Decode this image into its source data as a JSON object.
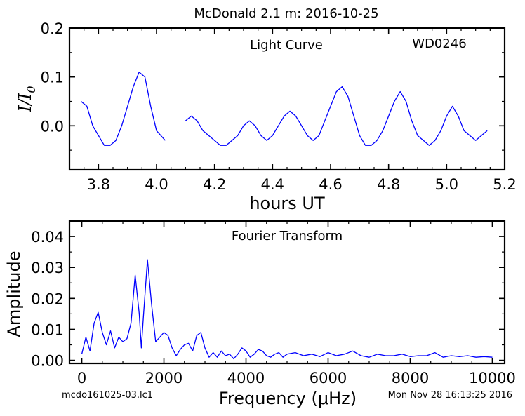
{
  "figure": {
    "title": "McDonald 2.1 m:  2016-10-25",
    "footer_left": "mcdo161025-03.lc1",
    "footer_right": "Mon Nov 28 16:13:25 2016"
  },
  "chart_data": [
    {
      "type": "line",
      "annotation_left": "Light Curve",
      "annotation_right": "WD0246",
      "xlabel": "hours UT",
      "ylabel": "I/I0",
      "xlim": [
        3.7,
        5.2
      ],
      "ylim": [
        -0.09,
        0.2
      ],
      "xticks": [
        3.8,
        4.0,
        4.2,
        4.4,
        4.6,
        4.8,
        5.0,
        5.2
      ],
      "xtick_labels": [
        "3.8",
        "4.0",
        "4.2",
        "4.4",
        "4.6",
        "4.8",
        "5.0",
        "5.2"
      ],
      "yticks": [
        0.0,
        0.1,
        0.2
      ],
      "ytick_labels": [
        "0.0",
        "0.1",
        "0.2"
      ],
      "grid": false,
      "line_color": "#0000ff",
      "segments": [
        {
          "x": [
            3.74,
            3.76,
            3.78,
            3.8,
            3.82,
            3.84,
            3.86,
            3.88,
            3.9,
            3.92,
            3.94,
            3.96,
            3.98,
            4.0,
            4.03
          ],
          "y": [
            0.05,
            0.04,
            0.0,
            -0.02,
            -0.04,
            -0.04,
            -0.03,
            0.0,
            0.04,
            0.08,
            0.11,
            0.1,
            0.04,
            -0.01,
            -0.03
          ]
        },
        {
          "x": [
            4.1,
            4.12,
            4.14,
            4.16,
            4.18,
            4.2,
            4.22,
            4.24,
            4.26,
            4.28,
            4.3,
            4.32,
            4.34,
            4.36,
            4.38,
            4.4,
            4.42,
            4.44,
            4.46,
            4.48,
            4.5,
            4.52,
            4.54,
            4.56,
            4.58,
            4.6,
            4.62,
            4.64,
            4.66,
            4.68,
            4.7,
            4.72,
            4.74,
            4.76,
            4.78,
            4.8,
            4.82,
            4.84,
            4.86,
            4.88,
            4.9,
            4.92,
            4.94,
            4.96,
            4.98,
            5.0,
            5.02,
            5.04,
            5.06,
            5.08,
            5.1,
            5.12,
            5.14
          ],
          "y": [
            0.01,
            0.02,
            0.01,
            -0.01,
            -0.02,
            -0.03,
            -0.04,
            -0.04,
            -0.03,
            -0.02,
            0.0,
            0.01,
            0.0,
            -0.02,
            -0.03,
            -0.02,
            0.0,
            0.02,
            0.03,
            0.02,
            0.0,
            -0.02,
            -0.03,
            -0.02,
            0.01,
            0.04,
            0.07,
            0.08,
            0.06,
            0.02,
            -0.02,
            -0.04,
            -0.04,
            -0.03,
            -0.01,
            0.02,
            0.05,
            0.07,
            0.05,
            0.01,
            -0.02,
            -0.03,
            -0.04,
            -0.03,
            -0.01,
            0.02,
            0.04,
            0.02,
            -0.01,
            -0.02,
            -0.03,
            -0.02,
            -0.01
          ]
        }
      ]
    },
    {
      "type": "line",
      "annotation": "Fourier Transform",
      "xlabel": "Frequency (μHz)",
      "ylabel": "Amplitude",
      "xlim": [
        -300,
        10300
      ],
      "ylim": [
        -0.001,
        0.045
      ],
      "xticks": [
        0,
        2000,
        4000,
        6000,
        8000,
        10000
      ],
      "xtick_labels": [
        "0",
        "2000",
        "4000",
        "6000",
        "8000",
        "10000"
      ],
      "yticks": [
        0.0,
        0.01,
        0.02,
        0.03,
        0.04
      ],
      "ytick_labels": [
        "0.00",
        "0.01",
        "0.02",
        "0.03",
        "0.04"
      ],
      "grid": false,
      "line_color": "#0000ff",
      "x": [
        0,
        100,
        200,
        300,
        400,
        500,
        600,
        700,
        800,
        900,
        1000,
        1100,
        1200,
        1300,
        1400,
        1450,
        1500,
        1600,
        1700,
        1800,
        1900,
        2000,
        2100,
        2200,
        2300,
        2400,
        2500,
        2600,
        2700,
        2800,
        2900,
        3000,
        3100,
        3200,
        3300,
        3400,
        3500,
        3600,
        3700,
        3800,
        3900,
        4000,
        4100,
        4200,
        4300,
        4400,
        4500,
        4600,
        4700,
        4800,
        4900,
        5000,
        5200,
        5400,
        5600,
        5800,
        6000,
        6200,
        6400,
        6600,
        6800,
        7000,
        7200,
        7400,
        7600,
        7800,
        8000,
        8200,
        8400,
        8600,
        8800,
        9000,
        9200,
        9400,
        9600,
        9800,
        10000
      ],
      "y": [
        0.002,
        0.0075,
        0.003,
        0.012,
        0.0155,
        0.009,
        0.005,
        0.0095,
        0.004,
        0.0075,
        0.006,
        0.007,
        0.012,
        0.0275,
        0.015,
        0.004,
        0.014,
        0.0325,
        0.018,
        0.006,
        0.0075,
        0.009,
        0.008,
        0.004,
        0.0015,
        0.0035,
        0.005,
        0.0055,
        0.003,
        0.008,
        0.009,
        0.004,
        0.001,
        0.0025,
        0.001,
        0.003,
        0.0015,
        0.002,
        0.0005,
        0.002,
        0.004,
        0.003,
        0.001,
        0.002,
        0.0035,
        0.003,
        0.0015,
        0.001,
        0.002,
        0.0025,
        0.001,
        0.002,
        0.0025,
        0.0015,
        0.002,
        0.0012,
        0.0025,
        0.0015,
        0.002,
        0.003,
        0.0015,
        0.001,
        0.002,
        0.0015,
        0.0015,
        0.002,
        0.0012,
        0.0015,
        0.0015,
        0.0025,
        0.001,
        0.0015,
        0.0012,
        0.0015,
        0.001,
        0.0012,
        0.001
      ]
    }
  ]
}
